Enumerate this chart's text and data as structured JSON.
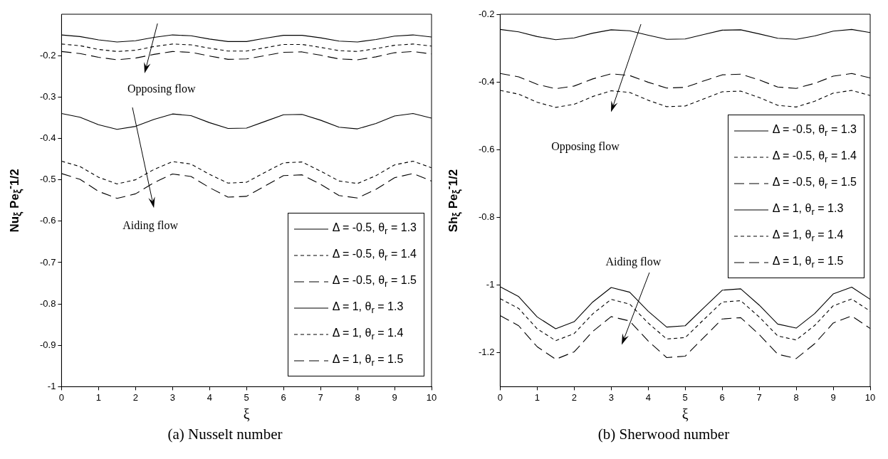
{
  "chart_data": [
    {
      "type": "line",
      "title": "(a) Nusselt number",
      "xlabel": "ξ",
      "ylabel": "Nu$_{ξ}$ Pe$_{ξ}$$^{-}$1/2",
      "annotations": [
        "Opposing flow",
        "Aiding flow"
      ],
      "x": [
        0,
        0.5,
        1,
        1.5,
        2,
        2.5,
        3,
        3.5,
        4,
        4.5,
        5,
        5.5,
        6,
        6.5,
        7,
        7.5,
        8,
        8.5,
        9,
        9.5,
        10
      ],
      "xlim": [
        0,
        10
      ],
      "xticks": [
        0,
        1,
        2,
        3,
        4,
        5,
        6,
        7,
        8,
        9,
        10
      ],
      "ylim": [
        -1,
        -0.1
      ],
      "yticks": [
        -1,
        -0.9,
        -0.8,
        -0.7,
        -0.6,
        -0.5,
        -0.4,
        -0.3,
        -0.2
      ],
      "grid": false,
      "legend": "bottom right",
      "marker": "none",
      "series": [
        {
          "name": "Δ = -0.5, θ$_{r}$ = 1.3",
          "color": "#000000",
          "line_style": "solid",
          "values": [
            -0.15,
            -0.154,
            -0.162,
            -0.167,
            -0.164,
            -0.156,
            -0.15,
            -0.152,
            -0.16,
            -0.166,
            -0.166,
            -0.158,
            -0.151,
            -0.151,
            -0.157,
            -0.165,
            -0.167,
            -0.161,
            -0.153,
            -0.15,
            -0.155
          ]
        },
        {
          "name": "Δ = -0.5, θ$_{r}$ = 1.4",
          "color": "#000000",
          "line_style": "dashed",
          "values": [
            -0.172,
            -0.176,
            -0.185,
            -0.19,
            -0.187,
            -0.178,
            -0.172,
            -0.174,
            -0.182,
            -0.189,
            -0.189,
            -0.181,
            -0.173,
            -0.173,
            -0.18,
            -0.188,
            -0.19,
            -0.183,
            -0.175,
            -0.172,
            -0.177
          ]
        },
        {
          "name": "Δ = -0.5, θ$_{r}$ = 1.5",
          "color": "#000000",
          "line_style": "dashed",
          "values": [
            -0.19,
            -0.195,
            -0.204,
            -0.21,
            -0.206,
            -0.197,
            -0.19,
            -0.192,
            -0.201,
            -0.209,
            -0.208,
            -0.2,
            -0.192,
            -0.191,
            -0.199,
            -0.208,
            -0.21,
            -0.203,
            -0.193,
            -0.19,
            -0.196
          ]
        },
        {
          "name": "Δ = 1, θ$_{r}$ = 1.3",
          "color": "#000000",
          "line_style": "solid",
          "values": [
            -0.34,
            -0.349,
            -0.367,
            -0.378,
            -0.371,
            -0.354,
            -0.341,
            -0.345,
            -0.362,
            -0.376,
            -0.375,
            -0.359,
            -0.343,
            -0.342,
            -0.356,
            -0.373,
            -0.377,
            -0.364,
            -0.346,
            -0.34,
            -0.351
          ]
        },
        {
          "name": "Δ = 1, θ$_{r}$ = 1.4",
          "color": "#000000",
          "line_style": "dashed",
          "values": [
            -0.455,
            -0.468,
            -0.494,
            -0.51,
            -0.5,
            -0.475,
            -0.456,
            -0.462,
            -0.487,
            -0.508,
            -0.506,
            -0.482,
            -0.459,
            -0.457,
            -0.479,
            -0.503,
            -0.509,
            -0.49,
            -0.464,
            -0.455,
            -0.471
          ]
        },
        {
          "name": "Δ = 1, θ$_{r}$ = 1.5",
          "color": "#000000",
          "line_style": "dashed",
          "values": [
            -0.485,
            -0.499,
            -0.528,
            -0.545,
            -0.534,
            -0.507,
            -0.486,
            -0.492,
            -0.519,
            -0.542,
            -0.54,
            -0.515,
            -0.49,
            -0.488,
            -0.511,
            -0.538,
            -0.544,
            -0.523,
            -0.495,
            -0.485,
            -0.503
          ]
        }
      ]
    },
    {
      "type": "line",
      "title": "(b) Sherwood number",
      "xlabel": "ξ",
      "ylabel": "Sh$_{ξ}$ Pe$_{ξ}$$^{-}$1/2",
      "annotations": [
        "Opposing flow",
        "Aiding flow"
      ],
      "x": [
        0,
        0.5,
        1,
        1.5,
        2,
        2.5,
        3,
        3.5,
        4,
        4.5,
        5,
        5.5,
        6,
        6.5,
        7,
        7.5,
        8,
        8.5,
        9,
        9.5,
        10
      ],
      "xlim": [
        0,
        10
      ],
      "xticks": [
        0,
        1,
        2,
        3,
        4,
        5,
        6,
        7,
        8,
        9,
        10
      ],
      "ylim": [
        -1.3,
        -0.2
      ],
      "yticks": [
        -1.2,
        -1,
        -0.8,
        -0.6,
        -0.4,
        -0.2
      ],
      "grid": false,
      "legend": "right",
      "marker": "none",
      "series": [
        {
          "name": "Δ = -0.5, θ$_{r}$ = 1.3",
          "color": "#000000",
          "line_style": "solid",
          "values": [
            -0.245,
            -0.252,
            -0.266,
            -0.275,
            -0.27,
            -0.256,
            -0.246,
            -0.249,
            -0.262,
            -0.274,
            -0.273,
            -0.26,
            -0.247,
            -0.246,
            -0.258,
            -0.271,
            -0.274,
            -0.264,
            -0.25,
            -0.245,
            -0.254
          ]
        },
        {
          "name": "Δ = -0.5, θ$_{r}$ = 1.4",
          "color": "#000000",
          "line_style": "dashed",
          "values": [
            -0.425,
            -0.436,
            -0.46,
            -0.475,
            -0.466,
            -0.443,
            -0.426,
            -0.431,
            -0.454,
            -0.473,
            -0.471,
            -0.45,
            -0.429,
            -0.427,
            -0.446,
            -0.469,
            -0.474,
            -0.457,
            -0.433,
            -0.425,
            -0.44
          ]
        },
        {
          "name": "Δ = -0.5, θ$_{r}$ = 1.5",
          "color": "#000000",
          "line_style": "dashed",
          "values": [
            -0.375,
            -0.385,
            -0.407,
            -0.42,
            -0.412,
            -0.391,
            -0.376,
            -0.381,
            -0.401,
            -0.418,
            -0.416,
            -0.397,
            -0.379,
            -0.377,
            -0.394,
            -0.415,
            -0.419,
            -0.404,
            -0.383,
            -0.375,
            -0.388
          ]
        },
        {
          "name": "Δ = 1, θ$_{r}$ = 1.3",
          "color": "#000000",
          "line_style": "solid",
          "values": [
            -1.005,
            -1.034,
            -1.094,
            -1.129,
            -1.108,
            -1.05,
            -1.007,
            -1.021,
            -1.077,
            -1.124,
            -1.12,
            -1.067,
            -1.015,
            -1.011,
            -1.059,
            -1.115,
            -1.127,
            -1.084,
            -1.026,
            -1.006,
            -1.042
          ]
        },
        {
          "name": "Δ = 1, θ$_{r}$ = 1.4",
          "color": "#000000",
          "line_style": "dashed",
          "values": [
            -1.04,
            -1.069,
            -1.129,
            -1.164,
            -1.143,
            -1.085,
            -1.042,
            -1.056,
            -1.112,
            -1.159,
            -1.155,
            -1.102,
            -1.05,
            -1.046,
            -1.094,
            -1.15,
            -1.162,
            -1.119,
            -1.061,
            -1.041,
            -1.077
          ]
        },
        {
          "name": "Δ = 1, θ$_{r}$ = 1.5",
          "color": "#000000",
          "line_style": "dashed",
          "values": [
            -1.09,
            -1.12,
            -1.182,
            -1.219,
            -1.197,
            -1.137,
            -1.093,
            -1.106,
            -1.165,
            -1.214,
            -1.21,
            -1.155,
            -1.1,
            -1.096,
            -1.146,
            -1.204,
            -1.217,
            -1.173,
            -1.112,
            -1.091,
            -1.128
          ]
        }
      ]
    }
  ]
}
